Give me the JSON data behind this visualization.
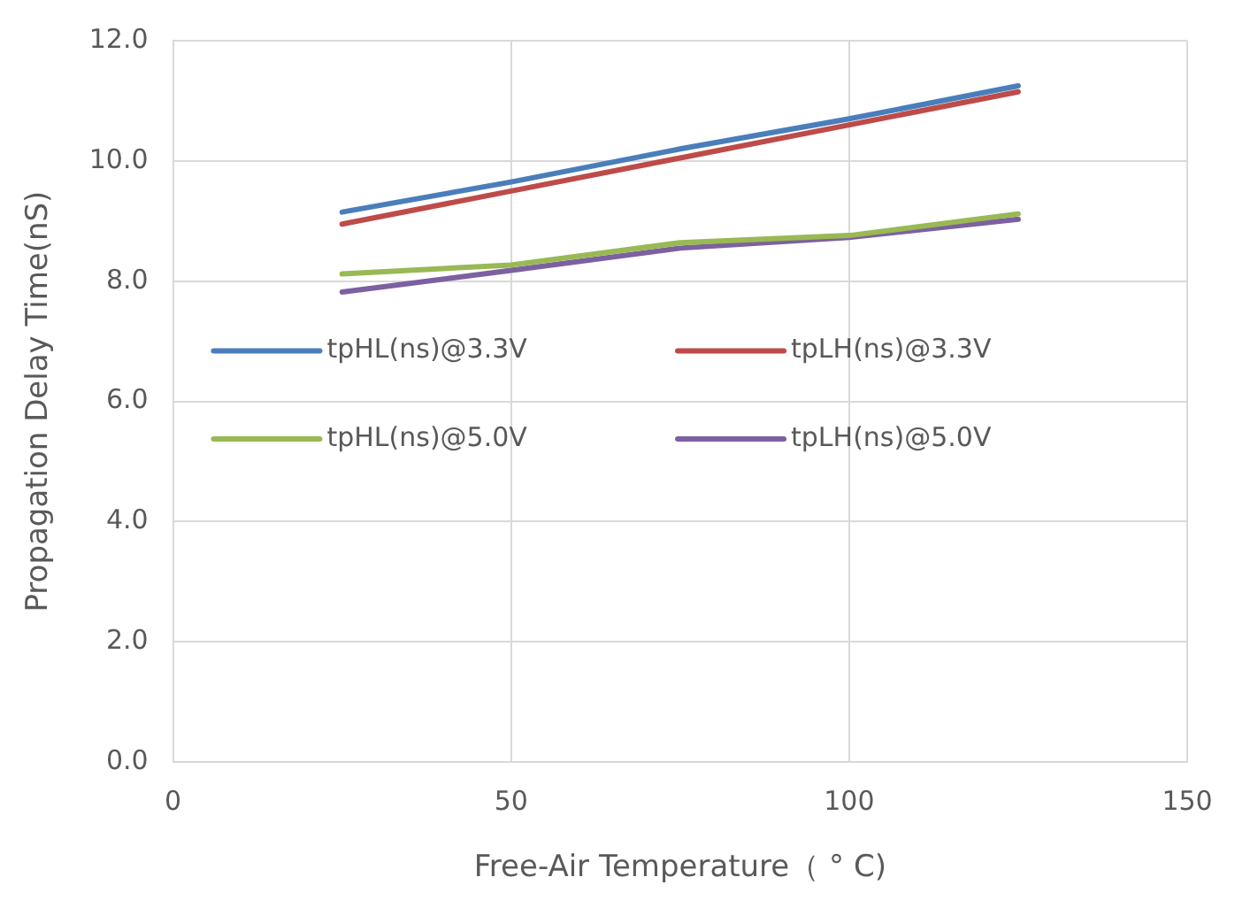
{
  "chart_data": {
    "type": "line",
    "xlabel": "Free-Air Temperature（ ° C)",
    "ylabel": "Propagation Delay Time(nS)",
    "x": [
      25,
      50,
      75,
      100,
      125
    ],
    "series": [
      {
        "name": "tpHL(ns)@3.3V",
        "color": "#4a7ebb",
        "values": [
          9.15,
          9.65,
          10.2,
          10.7,
          11.25
        ]
      },
      {
        "name": "tpLH(ns)@3.3V",
        "color": "#be4b48",
        "values": [
          8.95,
          9.5,
          10.05,
          10.6,
          11.15
        ]
      },
      {
        "name": "tpHL(ns)@5.0V",
        "color": "#98b954",
        "values": [
          8.12,
          8.27,
          8.64,
          8.76,
          9.12
        ]
      },
      {
        "name": "tpLH(ns)@5.0V",
        "color": "#7d60a0",
        "values": [
          7.82,
          8.18,
          8.55,
          8.73,
          9.03
        ]
      }
    ],
    "xlim": [
      0,
      150
    ],
    "xticks": [
      0,
      50,
      100,
      150
    ],
    "ylim": [
      0,
      12
    ],
    "yticks": [
      {
        "value": 0,
        "label": "0.0"
      },
      {
        "value": 2,
        "label": "2.0"
      },
      {
        "value": 4,
        "label": "4.0"
      },
      {
        "value": 6,
        "label": "6.0"
      },
      {
        "value": 8,
        "label": "8.0"
      },
      {
        "value": 10,
        "label": "10.0"
      },
      {
        "value": 12,
        "label": "12.0"
      }
    ],
    "grid": true,
    "legend": "left",
    "marker": "none",
    "line_style": "solid"
  }
}
